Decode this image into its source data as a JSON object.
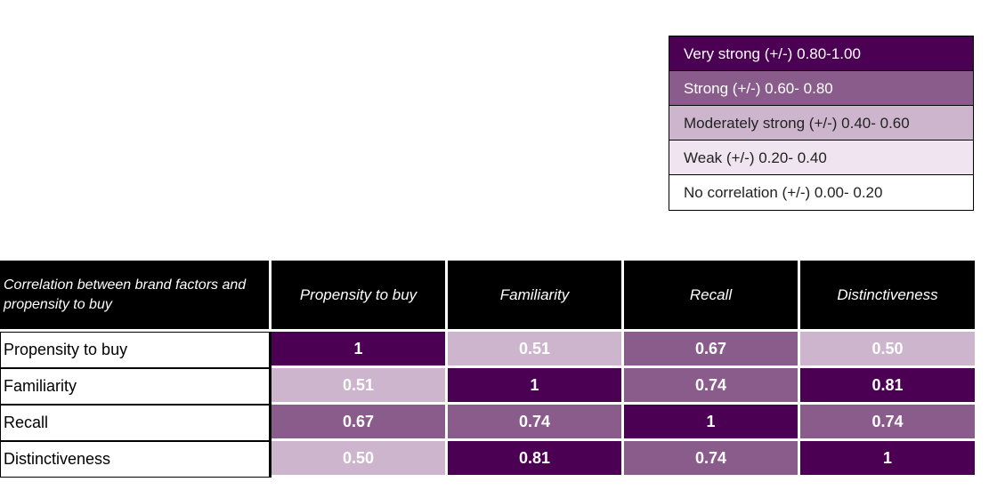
{
  "legend": [
    {
      "label": "Very strong  (+/-) 0.80-1.00",
      "bg": "#4b0054",
      "fg": "#ffffff"
    },
    {
      "label": "Strong  (+/-) 0.60- 0.80",
      "bg": "#8a5c8c",
      "fg": "#ffffff"
    },
    {
      "label": "Moderately strong  (+/-) 0.40- 0.60",
      "bg": "#cdb6cd",
      "fg": "#222222"
    },
    {
      "label": "Weak  (+/-) 0.20- 0.40",
      "bg": "#efe4ef",
      "fg": "#222222"
    },
    {
      "label": "No correlation   (+/-) 0.00- 0.20",
      "bg": "#ffffff",
      "fg": "#222222"
    }
  ],
  "chart_data": {
    "type": "heatmap",
    "title": "Correlation between brand factors and propensity to buy",
    "columns": [
      "Propensity to buy",
      "Familiarity",
      "Recall",
      "Distinctiveness"
    ],
    "rows": [
      "Propensity to buy",
      "Familiarity",
      "Recall",
      "Distinctiveness"
    ],
    "values": [
      [
        "1",
        "0.51",
        "0.67",
        "0.50"
      ],
      [
        "0.51",
        "1",
        "0.74",
        "0.81"
      ],
      [
        "0.67",
        "0.74",
        "1",
        "0.74"
      ],
      [
        "0.50",
        "0.81",
        "0.74",
        "1"
      ]
    ]
  }
}
